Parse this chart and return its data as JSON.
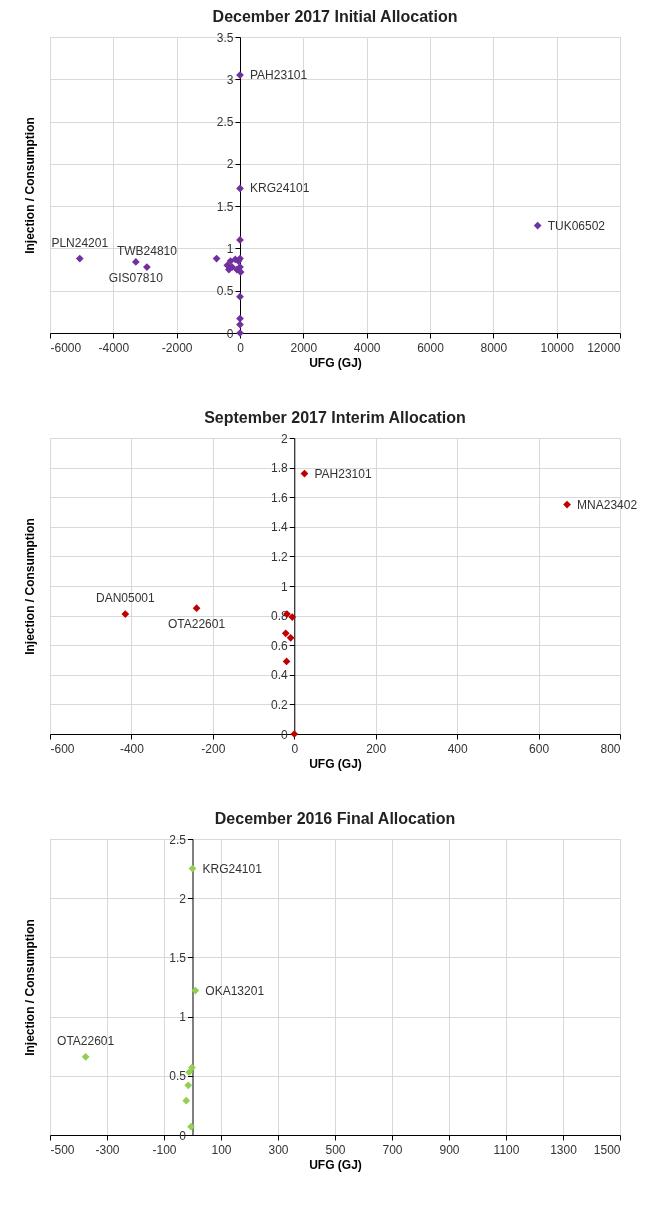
{
  "chart_data": [
    {
      "type": "scatter",
      "title": "December 2017 Initial Allocation",
      "xlabel": "UFG (GJ)",
      "ylabel": "Injection / Consumption",
      "marker": "diamond",
      "grid": true,
      "x": [
        0,
        0,
        9400,
        -5060,
        -3290,
        -2940,
        0,
        -740,
        -400,
        -350,
        -300,
        -250,
        -200,
        -150,
        -100,
        -50,
        0,
        0,
        20,
        -100,
        0,
        0,
        0,
        0
      ],
      "series": [
        {
          "color": "#7030a0",
          "values": [
            3.05,
            1.71,
            1.27,
            0.88,
            0.84,
            0.78,
            1.1,
            0.88,
            0.8,
            0.75,
            0.85,
            0.78,
            null,
            0.87,
            null,
            0.85,
            0.88,
            0.78,
            0.72,
            0.75,
            0.43,
            0.17,
            0.1,
            0
          ]
        }
      ],
      "xlim": [
        -6000,
        12000
      ],
      "xticks": [
        -6000,
        -4000,
        -2000,
        0,
        2000,
        4000,
        6000,
        8000,
        10000,
        12000
      ],
      "ylim": [
        0,
        3.5
      ],
      "yticks": [
        0,
        0.5,
        1,
        1.5,
        2,
        2.5,
        3,
        3.5
      ],
      "annotations": [
        {
          "text": "PAH23101",
          "x": 0,
          "y": 3.05
        },
        {
          "text": "KRG24101",
          "x": 0,
          "y": 1.71
        },
        {
          "text": "TUK06502",
          "x": 9400,
          "y": 1.27
        },
        {
          "text": "PLN24201",
          "x": -5060,
          "y": 0.88
        },
        {
          "text": "GIS07810",
          "x": -3290,
          "y": 0.84
        },
        {
          "text": "TWB24810",
          "x": -2940,
          "y": 0.78
        }
      ]
    },
    {
      "type": "scatter",
      "title": "September 2017 Interim Allocation",
      "xlabel": "UFG (GJ)",
      "ylabel": "Injection / Consumption",
      "marker": "diamond",
      "grid": true,
      "x": [
        25,
        670,
        -415,
        -240,
        -18,
        -5,
        -21,
        -9,
        -19,
        0
      ],
      "series": [
        {
          "color": "#c00000",
          "values": [
            1.76,
            1.55,
            0.81,
            0.85,
            0.81,
            0.79,
            0.68,
            0.65,
            0.49,
            0
          ]
        }
      ],
      "xlim": [
        -600,
        800
      ],
      "xticks": [
        -600,
        -400,
        -200,
        0,
        200,
        400,
        600,
        800
      ],
      "ylim": [
        0,
        2
      ],
      "yticks": [
        0,
        0.2,
        0.4,
        0.6,
        0.8,
        1,
        1.2,
        1.4,
        1.6,
        1.8,
        2
      ],
      "annotations": [
        {
          "text": "PAH23101",
          "x": 25,
          "y": 1.76
        },
        {
          "text": "MNA23402",
          "x": 670,
          "y": 1.55
        },
        {
          "text": "DAN05001",
          "x": -415,
          "y": 0.81
        },
        {
          "text": "OTA22601",
          "x": -240,
          "y": 0.85
        }
      ]
    },
    {
      "type": "scatter",
      "title": "December 2016 Final Allocation",
      "xlabel": "UFG (GJ)",
      "ylabel": "Injection / Consumption",
      "marker": "diamond",
      "grid": true,
      "x": [
        0,
        10,
        -375,
        -2,
        -12,
        -15,
        -22,
        -5
      ],
      "series": [
        {
          "color": "#92d050",
          "values": [
            2.25,
            1.22,
            0.66,
            0.57,
            0.53,
            0.42,
            0.29,
            0.07
          ]
        }
      ],
      "xlim": [
        -500,
        1500
      ],
      "xticks": [
        -500,
        -300,
        -100,
        100,
        300,
        500,
        700,
        900,
        1100,
        1300,
        1500
      ],
      "ylim": [
        0,
        2.5
      ],
      "yticks": [
        0,
        0.5,
        1,
        1.5,
        2,
        2.5
      ],
      "annotations": [
        {
          "text": "KRG24101",
          "x": 0,
          "y": 2.25
        },
        {
          "text": "OKA13201",
          "x": 10,
          "y": 1.22
        },
        {
          "text": "OTA22601",
          "x": -375,
          "y": 0.66
        }
      ]
    }
  ]
}
